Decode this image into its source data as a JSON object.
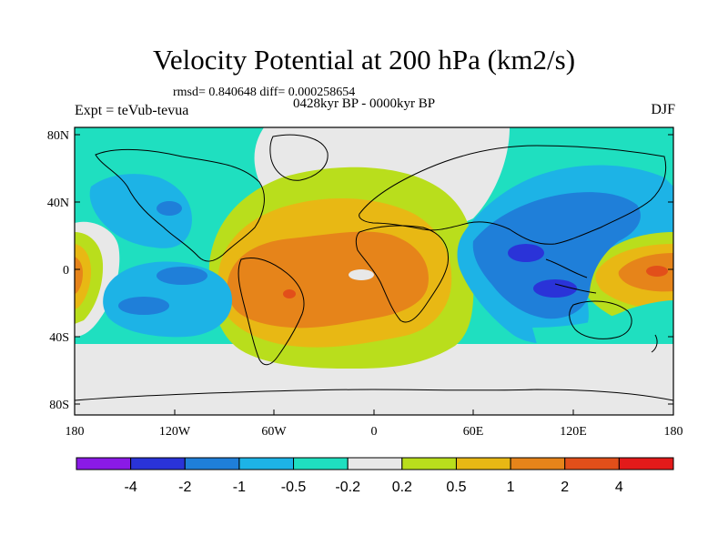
{
  "title": "Velocity Potential at 200 hPa (km2/s)",
  "stats": "rmsd= 0.840648 diff= 0.000258654",
  "subtitle": "0428kyr BP - 0000kyr BP",
  "experiment": "Expt = teVub-tevua",
  "season": "DJF",
  "y_ticks": [
    "80N",
    "40N",
    "0",
    "40S",
    "80S"
  ],
  "x_ticks": [
    "180",
    "120W",
    "60W",
    "0",
    "60E",
    "120E",
    "180"
  ],
  "colorbar": {
    "labels": [
      "-4",
      "-2",
      "-1",
      "-0.5",
      "-0.2",
      "0.2",
      "0.5",
      "1",
      "2",
      "4"
    ],
    "colors": [
      "#8a1ae6",
      "#2a33d8",
      "#1f7fd9",
      "#1db3e6",
      "#1fdfc0",
      "#e8e8e8",
      "#b9de1c",
      "#e8b814",
      "#e6841a",
      "#e24f1a",
      "#e31a1a"
    ]
  },
  "field_colors": {
    "land": "#e8e8e8",
    "neg_02": "#1fdfc0",
    "neg_05": "#1db3e6",
    "neg_1": "#1f7fd9",
    "neg_2": "#2a33d8",
    "pos_02": "#b9de1c",
    "pos_05": "#e8b814",
    "pos_1": "#e6841a",
    "pos_2": "#e24f1a",
    "pos_4": "#e31a1a"
  }
}
